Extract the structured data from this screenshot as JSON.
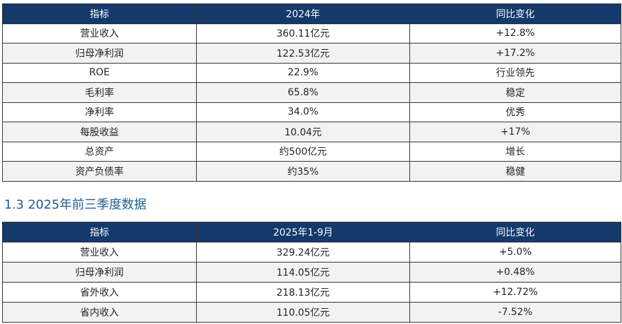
{
  "table1": {
    "header": [
      "指标",
      "2024年",
      "同比变化"
    ],
    "rows": [
      [
        "营业收入",
        "360.11亿元",
        "+12.8%"
      ],
      [
        "归母净利润",
        "122.53亿元",
        "+17.2%"
      ],
      [
        "ROE",
        "22.9%",
        "行业领先"
      ],
      [
        "毛利率",
        "65.8%",
        "稳定"
      ],
      [
        "净利率",
        "34.0%",
        "优秀"
      ],
      [
        "每股收益",
        "10.04元",
        "+17%"
      ],
      [
        "总资产",
        "约500亿元",
        "增长"
      ],
      [
        "资产负债率",
        "约35%",
        "稳健"
      ]
    ]
  },
  "section_title": "1.3 2025年前三季度数据",
  "table2": {
    "header": [
      "指标",
      "2025年1-9月",
      "同比变化"
    ],
    "rows": [
      [
        "营业收入",
        "329.24亿元",
        "+5.0%"
      ],
      [
        "归母净利润",
        "114.05亿元",
        "+0.48%"
      ],
      [
        "省外收入",
        "218.13亿元",
        "+12.72%"
      ],
      [
        "省内收入",
        "110.05亿元",
        "-7.52%"
      ]
    ]
  }
}
